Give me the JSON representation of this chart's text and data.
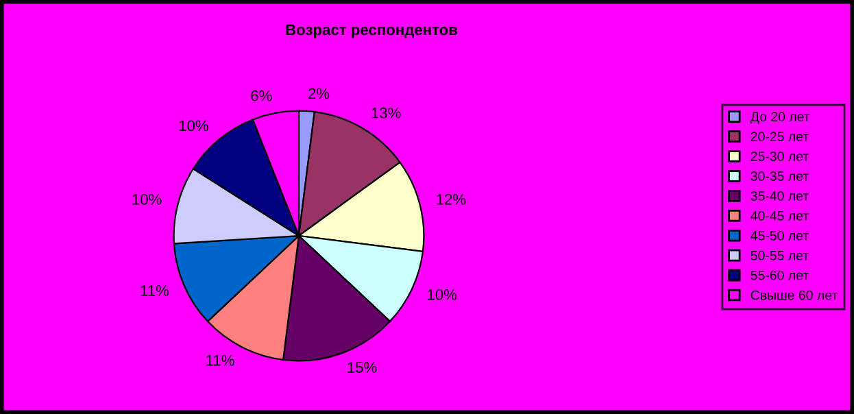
{
  "chart_data": {
    "type": "pie",
    "title": "Возраст респондентов",
    "categories": [
      "До 20 лет",
      "20-25 лет",
      "25-30 лет",
      "30-35 лет",
      "35-40 лет",
      "40-45 лет",
      "45-50 лет",
      "50-55 лет",
      "55-60 лет",
      "Свыше 60 лет"
    ],
    "values": [
      2,
      13,
      12,
      10,
      15,
      11,
      11,
      10,
      10,
      6
    ],
    "colors": [
      "#9999ff",
      "#993366",
      "#ffffcc",
      "#ccffff",
      "#660066",
      "#ff8080",
      "#0066cc",
      "#ccccff",
      "#000080",
      "#ff00ff"
    ],
    "value_labels": [
      "2%",
      "13%",
      "12%",
      "10%",
      "15%",
      "11%",
      "11%",
      "10%",
      "10%",
      "6%"
    ],
    "legend": "right"
  }
}
